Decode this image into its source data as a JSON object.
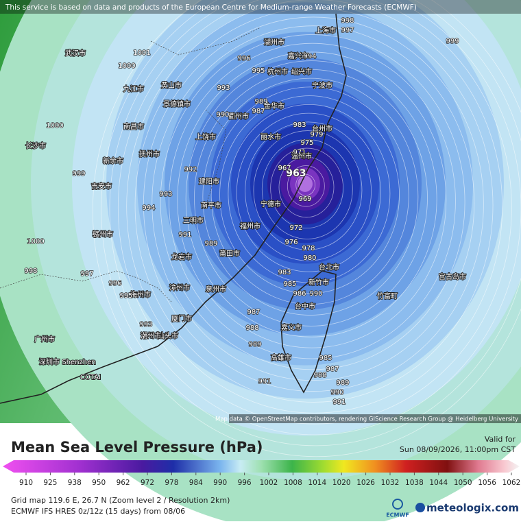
{
  "header": {
    "attribution": "This service is based on data and products of the European Centre for Medium-range Weather Forecasts (ECMWF)"
  },
  "map": {
    "credit": "Map data © OpenStreetMap contributors, rendering GIScience Research Group @ Heidelberg University",
    "place_labels": [
      "湖州市",
      "上海市",
      "嘉兴市",
      "杭州市",
      "宁波市",
      "绍兴市",
      "金华市",
      "台州市",
      "温州市",
      "丽水市",
      "衢州市",
      "宁德市",
      "福州市",
      "莆田市",
      "泉州市",
      "厦门市",
      "漳州市",
      "龙岩市",
      "三明市",
      "南平市",
      "建阳市",
      "上饶市",
      "景德镇市",
      "南昌市",
      "九江市",
      "武汉市",
      "长沙市",
      "新余市",
      "吉安市",
      "赣州市",
      "抚州市",
      "梅州市",
      "汕头市",
      "潮州市",
      "广州市",
      "深圳市",
      "Shenzhen",
      "COTAI",
      "台北市",
      "新竹市",
      "台中市",
      "嘉义市",
      "高雄市",
      "竹富町",
      "宫古岛市",
      "黄山市"
    ],
    "isobar_labels": [
      963,
      983,
      979,
      975,
      971,
      967,
      969,
      972,
      976,
      978,
      980,
      983,
      985,
      986,
      990,
      987,
      988,
      989,
      991,
      985,
      987,
      988,
      989,
      990,
      991,
      993,
      992,
      993,
      994,
      991,
      989,
      996,
      995,
      993,
      997,
      998,
      1000,
      999,
      998,
      997,
      996,
      995,
      994,
      990,
      987,
      989,
      1000,
      1001,
      999,
      1000
    ]
  },
  "legend": {
    "title": "Mean Sea Level Pressure (hPa)",
    "valid_label": "Valid for",
    "valid_time": "Sun 08/09/2026, 11:00pm CST",
    "scale_ticks": [
      910,
      925,
      938,
      950,
      962,
      972,
      978,
      984,
      990,
      996,
      1002,
      1008,
      1014,
      1020,
      1026,
      1032,
      1038,
      1044,
      1050,
      1056,
      1062
    ]
  },
  "footer": {
    "grid_info": "Grid map 119.6 E, 26.7 N (Zoom level 2 / Resolution 2km)",
    "model_info": "ECMWF IFS HRES 0z/12z (15 days) from 08/06"
  },
  "branding": {
    "ecmwf": "ECMWF",
    "site": "meteologix.com"
  }
}
